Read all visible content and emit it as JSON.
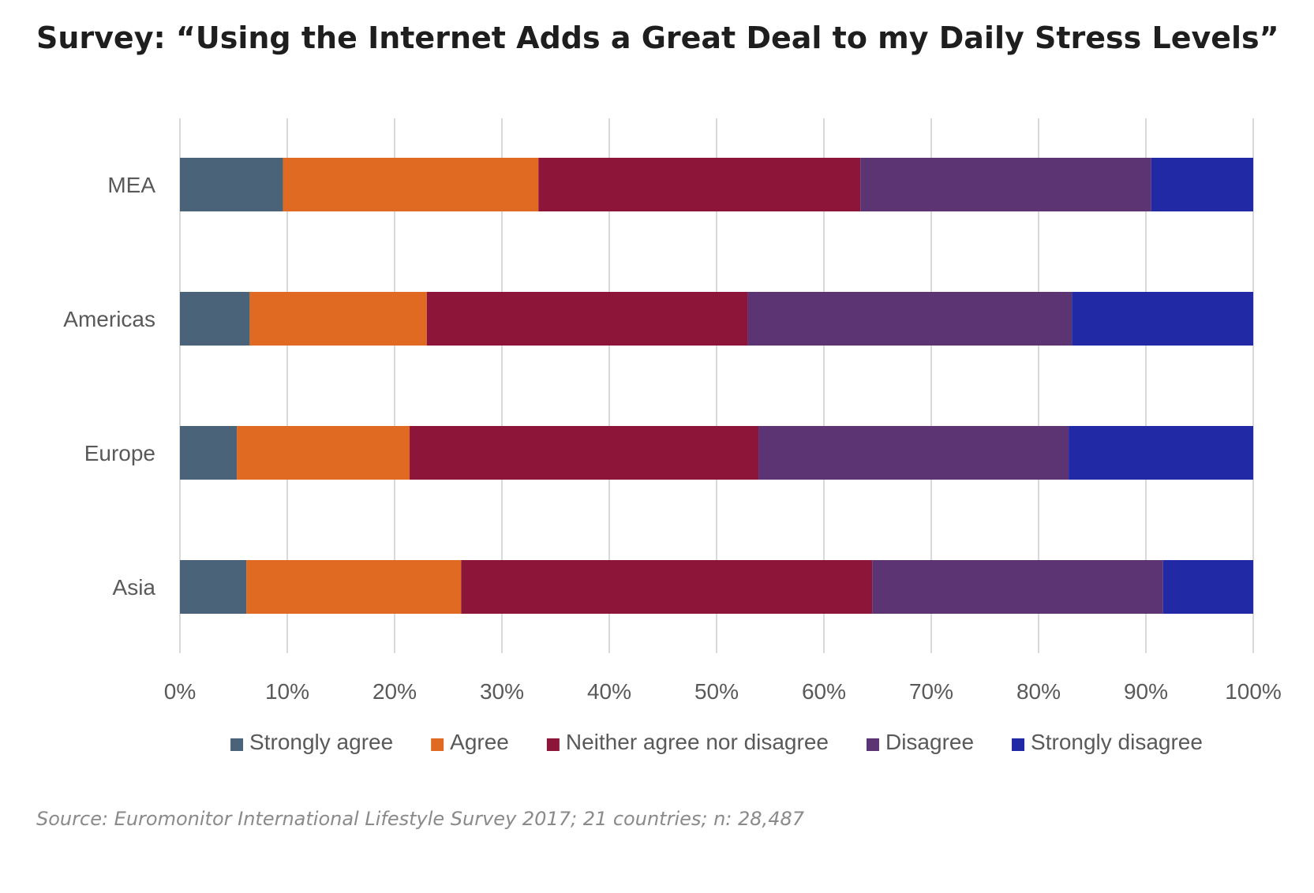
{
  "chart_data": {
    "type": "bar",
    "orientation": "horizontal",
    "stacked": "percent",
    "title": "Survey: “Using the Internet Adds a Great Deal to my Daily Stress Levels”",
    "source": "Source: Euromonitor International Lifestyle Survey 2017; 21 countries; n: 28,487",
    "categories": [
      "MEA",
      "Americas",
      "Europe",
      "Asia"
    ],
    "series": [
      {
        "name": "Strongly agree",
        "color": "#4b6378",
        "values": [
          9.6,
          6.5,
          5.3,
          6.2
        ]
      },
      {
        "name": "Agree",
        "color": "#e06a22",
        "values": [
          23.8,
          16.5,
          16.1,
          20.0
        ]
      },
      {
        "name": "Neither agree nor disagree",
        "color": "#8e153a",
        "values": [
          30.0,
          29.9,
          32.5,
          38.3
        ]
      },
      {
        "name": "Disagree",
        "color": "#5c3373",
        "values": [
          27.1,
          30.2,
          28.9,
          27.1
        ]
      },
      {
        "name": "Strongly disagree",
        "color": "#2229a5",
        "values": [
          9.5,
          16.9,
          17.2,
          8.4
        ]
      }
    ],
    "xlim": [
      0,
      100
    ],
    "x_ticks": [
      "0%",
      "10%",
      "20%",
      "30%",
      "40%",
      "50%",
      "60%",
      "70%",
      "80%",
      "90%",
      "100%"
    ],
    "xlabel": "",
    "ylabel": "",
    "grid": "vertical",
    "legend_position": "bottom"
  }
}
